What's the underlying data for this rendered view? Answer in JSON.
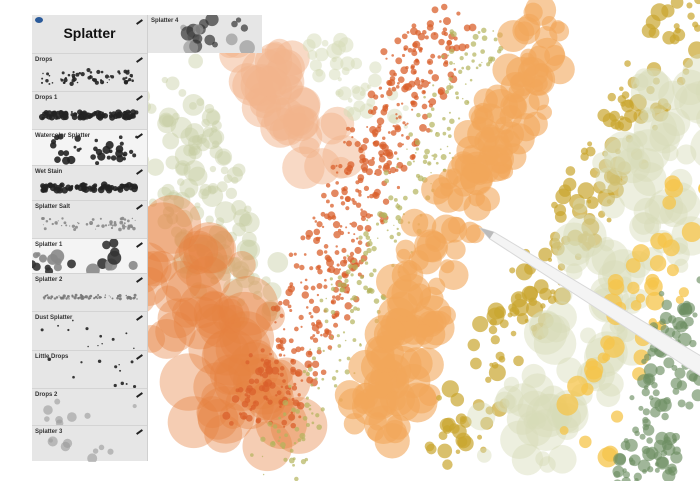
{
  "panel": {
    "title": "Splatter",
    "top_tile_label": "Splatter 4",
    "brushes": [
      {
        "label": "Drops",
        "style": "dots"
      },
      {
        "label": "Drops 1",
        "style": "stroke"
      },
      {
        "label": "Watercolor Splatter",
        "style": "bigdots"
      },
      {
        "label": "Wet Stain",
        "style": "stroke"
      },
      {
        "label": "Splatter Salt",
        "style": "salt"
      },
      {
        "label": "Splatter 1",
        "style": "circles"
      },
      {
        "label": "Splatter 2",
        "style": "thin"
      },
      {
        "label": "Dust Splatter",
        "style": "sparse"
      },
      {
        "label": "Little Drops",
        "style": "sparse"
      },
      {
        "label": "Drops 2",
        "style": "soft"
      },
      {
        "label": "Splatter 3",
        "style": "soft"
      }
    ]
  },
  "artwork_colors": {
    "sage": "#c8cfa4",
    "peach": "#f2b48c",
    "orange": "#e68140",
    "red_orange": "#d9602c",
    "olive": "#b4b35c",
    "light_orange": "#f2a65a",
    "gold": "#c9a52e",
    "pale_sage": "#d6dbb8",
    "yellow": "#f6c44a",
    "green": "#6d8f62"
  },
  "pencil_icon": "apple-pencil"
}
